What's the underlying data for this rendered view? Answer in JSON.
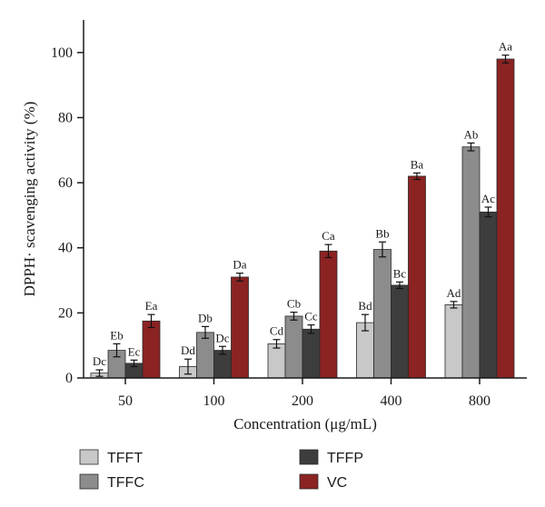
{
  "chart_data": {
    "type": "bar",
    "title": "",
    "xlabel": "Concentration (μg/mL)",
    "ylabel": "DPPH· scavenging activity (%)",
    "ylim": [
      0,
      110
    ],
    "yticks": [
      0,
      20,
      40,
      60,
      80,
      100
    ],
    "grid": false,
    "legend_position": "bottom",
    "categories": [
      "50",
      "100",
      "200",
      "400",
      "800"
    ],
    "series": [
      {
        "name": "TFFT",
        "color": "#c8c8c8",
        "values": [
          1.5,
          3.5,
          10.5,
          17,
          22.5
        ],
        "errors": [
          1.0,
          2.3,
          1.3,
          2.5,
          1.0
        ],
        "labels": [
          "Dc",
          "Dd",
          "Cd",
          "Bd",
          "Ad"
        ]
      },
      {
        "name": "TFFC",
        "color": "#8c8c8c",
        "values": [
          8.5,
          14,
          19,
          39.5,
          71
        ],
        "errors": [
          2.0,
          1.8,
          1.2,
          2.3,
          1.2
        ],
        "labels": [
          "Eb",
          "Db",
          "Cb",
          "Bb",
          "Ab"
        ]
      },
      {
        "name": "TFFP",
        "color": "#3d3d3d",
        "values": [
          4.5,
          8.5,
          15,
          28.5,
          51
        ],
        "errors": [
          1.0,
          1.2,
          1.3,
          1.0,
          1.5
        ],
        "labels": [
          "Ec",
          "Dc",
          "Cc",
          "Bc",
          "Ac"
        ]
      },
      {
        "name": "VC",
        "color": "#8b2323",
        "values": [
          17.5,
          31,
          39,
          62,
          98
        ],
        "errors": [
          2.0,
          1.2,
          2.0,
          1.0,
          1.2
        ],
        "labels": [
          "Ea",
          "Da",
          "Ca",
          "Ba",
          "Aa"
        ]
      }
    ]
  }
}
